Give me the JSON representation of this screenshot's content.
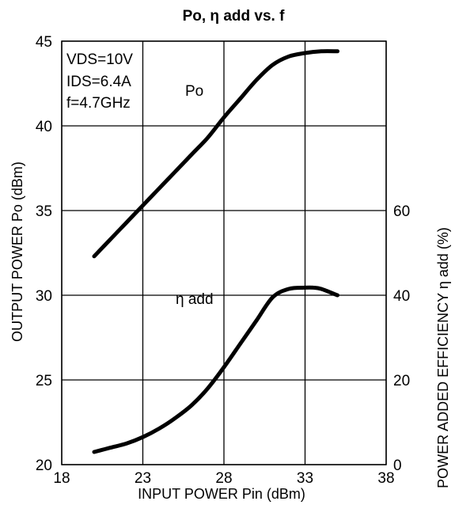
{
  "chart_data": {
    "type": "line",
    "title": "Po, η add vs. f",
    "xlabel": "INPUT POWER Pin (dBm)",
    "ylabel_left": "OUTPUT POWER Po (dBm)",
    "ylabel_right": "POWER ADDED EFFICIENCY η add (%)",
    "xlim": [
      18,
      38
    ],
    "ylim_left": [
      20,
      45
    ],
    "ylim_right": [
      0,
      100
    ],
    "xticks": [
      "18",
      "23",
      "28",
      "33",
      "38"
    ],
    "yticks_left": [
      "20",
      "25",
      "30",
      "35",
      "40",
      "45"
    ],
    "yticks_right": [
      "0",
      "20",
      "40",
      "60"
    ],
    "grid": true,
    "conditions": [
      "VDS=10V",
      "IDS=6.4A",
      "f=4.7GHz"
    ],
    "series": [
      {
        "name": "Po",
        "axis": "left",
        "x": [
          20,
          21,
          22,
          23,
          24,
          25,
          26,
          27,
          28,
          29,
          30,
          31,
          32,
          33,
          34,
          35
        ],
        "y": [
          32.3,
          33.3,
          34.3,
          35.3,
          36.3,
          37.3,
          38.3,
          39.3,
          40.5,
          41.6,
          42.7,
          43.6,
          44.1,
          44.3,
          44.4,
          44.4
        ]
      },
      {
        "name": "η add",
        "axis": "right",
        "x": [
          20,
          21,
          22,
          23,
          24,
          25,
          26,
          27,
          28,
          29,
          30,
          31,
          32,
          33,
          33.5,
          34,
          35
        ],
        "y": [
          3,
          4,
          5,
          6.5,
          8.5,
          11,
          14,
          18,
          23,
          28.5,
          34,
          39.5,
          41.5,
          41.8,
          41.8,
          41.5,
          40
        ]
      }
    ]
  }
}
